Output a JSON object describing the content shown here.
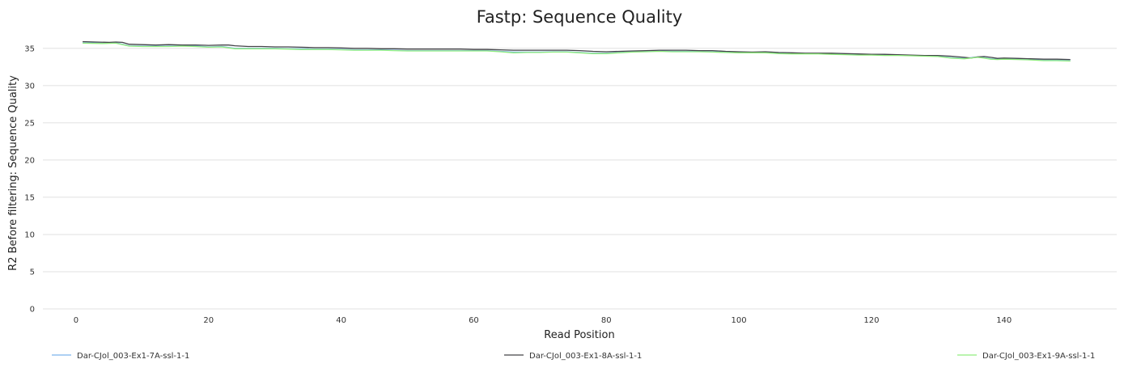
{
  "chart_data": {
    "type": "line",
    "title": "Fastp: Sequence Quality",
    "xlabel": "Read Position",
    "ylabel": "R2 Before filtering: Sequence Quality",
    "xlim": [
      -5,
      157
    ],
    "ylim": [
      0,
      36.5
    ],
    "x_ticks": [
      0,
      20,
      40,
      60,
      80,
      100,
      120,
      140
    ],
    "y_ticks": [
      0,
      5,
      10,
      15,
      20,
      25,
      30,
      35
    ],
    "grid": "horizontal",
    "legend_position": "bottom",
    "series": [
      {
        "name": "Dar-CJol_003-Ex1-7A-ssl-1-1",
        "color": "#7cb5ec",
        "x": [
          1,
          4,
          6,
          8,
          10,
          12,
          14,
          16,
          18,
          20,
          22,
          24,
          26,
          28,
          30,
          32,
          34,
          36,
          38,
          40,
          42,
          44,
          46,
          48,
          50,
          52,
          54,
          56,
          58,
          60,
          62,
          64,
          66,
          68,
          70,
          72,
          74,
          76,
          78,
          80,
          82,
          84,
          86,
          88,
          90,
          92,
          94,
          96,
          98,
          100,
          102,
          104,
          106,
          108,
          110,
          112,
          114,
          116,
          118,
          120,
          122,
          124,
          126,
          128,
          130,
          132,
          134,
          136,
          137,
          138,
          139,
          140,
          142,
          144,
          146,
          148,
          150
        ],
        "y": [
          35.75,
          35.7,
          35.75,
          35.35,
          35.3,
          35.3,
          35.3,
          35.35,
          35.3,
          35.2,
          35.25,
          35.0,
          35.0,
          35.0,
          35.0,
          34.95,
          34.95,
          34.9,
          34.9,
          34.85,
          34.8,
          34.8,
          34.8,
          34.75,
          34.7,
          34.7,
          34.7,
          34.7,
          34.7,
          34.7,
          34.7,
          34.6,
          34.5,
          34.5,
          34.5,
          34.55,
          34.55,
          34.45,
          34.35,
          34.35,
          34.45,
          34.55,
          34.6,
          34.65,
          34.6,
          34.6,
          34.6,
          34.55,
          34.5,
          34.45,
          34.45,
          34.45,
          34.35,
          34.3,
          34.3,
          34.3,
          34.25,
          34.2,
          34.15,
          34.15,
          34.1,
          34.1,
          34.05,
          34.0,
          33.95,
          33.75,
          33.65,
          33.85,
          33.75,
          33.6,
          33.55,
          33.6,
          33.55,
          33.5,
          33.4,
          33.4,
          33.35
        ]
      },
      {
        "name": "Dar-CJol_003-Ex1-8A-ssl-1-1",
        "color": "#434348",
        "x": [
          1,
          3,
          5,
          6,
          7,
          8,
          10,
          12,
          14,
          16,
          18,
          20,
          22,
          23,
          24,
          26,
          28,
          30,
          32,
          34,
          36,
          38,
          40,
          42,
          44,
          46,
          48,
          50,
          52,
          54,
          56,
          58,
          60,
          62,
          64,
          66,
          68,
          70,
          72,
          74,
          76,
          78,
          80,
          82,
          84,
          86,
          88,
          90,
          92,
          94,
          96,
          98,
          100,
          102,
          104,
          106,
          108,
          110,
          112,
          114,
          116,
          118,
          120,
          122,
          124,
          126,
          128,
          130,
          132,
          134,
          135,
          136,
          137,
          138,
          139,
          140,
          142,
          144,
          146,
          148,
          150
        ],
        "y": [
          35.9,
          35.85,
          35.8,
          35.85,
          35.8,
          35.55,
          35.5,
          35.45,
          35.5,
          35.45,
          35.45,
          35.4,
          35.45,
          35.45,
          35.35,
          35.25,
          35.25,
          35.2,
          35.2,
          35.15,
          35.1,
          35.1,
          35.05,
          35.0,
          35.0,
          34.95,
          34.95,
          34.9,
          34.9,
          34.9,
          34.9,
          34.9,
          34.85,
          34.85,
          34.8,
          34.75,
          34.75,
          34.75,
          34.75,
          34.75,
          34.7,
          34.6,
          34.55,
          34.6,
          34.65,
          34.7,
          34.75,
          34.75,
          34.75,
          34.7,
          34.7,
          34.6,
          34.55,
          34.5,
          34.55,
          34.45,
          34.4,
          34.35,
          34.35,
          34.35,
          34.3,
          34.25,
          34.2,
          34.2,
          34.15,
          34.1,
          34.05,
          34.05,
          33.95,
          33.8,
          33.7,
          33.85,
          33.9,
          33.8,
          33.65,
          33.7,
          33.65,
          33.6,
          33.55,
          33.55,
          33.5
        ]
      },
      {
        "name": "Dar-CJol_003-Ex1-9A-ssl-1-1",
        "color": "#90ed7d",
        "x": [
          1,
          4,
          6,
          8,
          10,
          12,
          14,
          16,
          18,
          20,
          22,
          24,
          26,
          28,
          30,
          32,
          34,
          36,
          38,
          40,
          42,
          44,
          46,
          48,
          50,
          52,
          54,
          56,
          58,
          60,
          62,
          64,
          66,
          68,
          70,
          72,
          74,
          76,
          78,
          80,
          82,
          84,
          86,
          88,
          90,
          92,
          94,
          96,
          98,
          100,
          102,
          104,
          106,
          108,
          110,
          112,
          114,
          116,
          118,
          120,
          122,
          124,
          126,
          128,
          130,
          132,
          134,
          136,
          137,
          138,
          139,
          140,
          142,
          144,
          146,
          148,
          150
        ],
        "y": [
          35.7,
          35.65,
          35.7,
          35.3,
          35.25,
          35.25,
          35.25,
          35.3,
          35.25,
          35.15,
          35.2,
          34.95,
          34.95,
          34.95,
          34.95,
          34.9,
          34.85,
          34.85,
          34.85,
          34.8,
          34.75,
          34.75,
          34.75,
          34.7,
          34.65,
          34.65,
          34.65,
          34.65,
          34.65,
          34.65,
          34.65,
          34.55,
          34.4,
          34.45,
          34.45,
          34.5,
          34.5,
          34.4,
          34.3,
          34.3,
          34.4,
          34.5,
          34.55,
          34.6,
          34.55,
          34.55,
          34.55,
          34.5,
          34.45,
          34.4,
          34.4,
          34.4,
          34.3,
          34.25,
          34.25,
          34.25,
          34.2,
          34.15,
          34.1,
          34.1,
          34.05,
          34.05,
          34.0,
          33.95,
          33.9,
          33.7,
          33.6,
          33.8,
          33.7,
          33.55,
          33.5,
          33.55,
          33.5,
          33.45,
          33.35,
          33.35,
          33.3
        ]
      }
    ]
  }
}
